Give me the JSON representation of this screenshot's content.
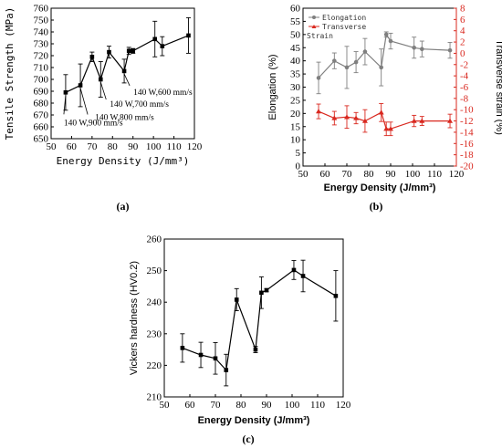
{
  "chart_data": [
    {
      "type": "line",
      "panel_label": "(a)",
      "ylabel": "Tensile Strength (MPa)",
      "xlabel": "Energy Density (J/mm³)",
      "xlim": [
        50,
        120
      ],
      "ylim": [
        650,
        760
      ],
      "x_ticks": [
        "50",
        "60",
        "70",
        "80",
        "90",
        "100",
        "110",
        "120"
      ],
      "y_ticks": [
        "650",
        "660",
        "670",
        "680",
        "690",
        "700",
        "710",
        "720",
        "730",
        "740",
        "750",
        "760"
      ],
      "series": [
        {
          "x": [
            57.1,
            64.3,
            70.0,
            74.2,
            78.3,
            85.7,
            88.0,
            90.0,
            100.7,
            104.3,
            117.1
          ],
          "y": [
            689,
            695,
            719,
            700,
            723,
            707,
            724,
            724,
            734,
            728,
            737
          ],
          "err": [
            15,
            18,
            4,
            15,
            5,
            10,
            3,
            2,
            15,
            8,
            15
          ]
        }
      ],
      "annotations": [
        {
          "text": "140 W,900 mm/s",
          "x": 57.1,
          "y": 689
        },
        {
          "text": "140 W,800 mm/s",
          "x": 64.3,
          "y": 695
        },
        {
          "text": "140 W,700 mm/s",
          "x": 74.2,
          "y": 700
        },
        {
          "text": "140 W,600 mm/s",
          "x": 85.7,
          "y": 707
        }
      ]
    },
    {
      "type": "line",
      "panel_label": "(b)",
      "xlabel": "Energy Density (J/mm³)",
      "ylabel": "Elongation (%)",
      "ylabel_right": "Transverse strain (%)",
      "xlim": [
        50,
        120
      ],
      "ylim": [
        0,
        60
      ],
      "ylim_right": [
        -20,
        8
      ],
      "x_ticks": [
        "50",
        "60",
        "70",
        "80",
        "90",
        "100",
        "110",
        "120"
      ],
      "y_ticks": [
        "0",
        "5",
        "10",
        "15",
        "20",
        "25",
        "30",
        "35",
        "40",
        "45",
        "50",
        "55",
        "60"
      ],
      "y_ticks_right": [
        "-20",
        "-18",
        "-16",
        "-14",
        "-12",
        "-10",
        "-8",
        "-6",
        "-4",
        "-2",
        "0",
        "2",
        "4",
        "6",
        "8"
      ],
      "legend": [
        "Elongation",
        "Transverse",
        "Strain"
      ],
      "colors": {
        "elongation": "#7f7f7f",
        "transverse": "#d9281f"
      },
      "series": [
        {
          "name": "Elongation",
          "x": [
            57.1,
            64.3,
            70.0,
            74.2,
            78.3,
            85.7,
            88.0,
            90.0,
            100.7,
            104.3,
            117.1
          ],
          "y": [
            33.5,
            40,
            37.5,
            39.5,
            43.5,
            37.5,
            50,
            47.5,
            45,
            44.5,
            44
          ],
          "err": [
            6,
            3,
            8,
            4,
            5,
            7,
            1,
            3,
            4,
            3,
            3
          ]
        },
        {
          "name": "Transverse Strain",
          "x": [
            57.1,
            64.3,
            70.0,
            74.2,
            78.3,
            85.7,
            88.0,
            90.0,
            100.7,
            104.3,
            117.1
          ],
          "y": [
            -10.3,
            -11.5,
            -11.3,
            -11.5,
            -12,
            -10.5,
            -13.4,
            -13.4,
            -12,
            -12,
            -12
          ],
          "err": [
            1.3,
            1.2,
            2,
            1,
            2,
            1.6,
            1.2,
            1.2,
            1,
            0.8,
            1.2
          ],
          "axis": "right"
        }
      ]
    },
    {
      "type": "line",
      "panel_label": "(c)",
      "ylabel": "Vickers hardness (HV0.2)",
      "xlabel": "Energy Density (J/mm³)",
      "xlim": [
        50,
        120
      ],
      "ylim": [
        210,
        260
      ],
      "x_ticks": [
        "50",
        "60",
        "70",
        "80",
        "90",
        "100",
        "110",
        "120"
      ],
      "y_ticks": [
        "210",
        "220",
        "230",
        "240",
        "250",
        "260"
      ],
      "series": [
        {
          "x": [
            57.1,
            64.3,
            70.0,
            74.2,
            78.3,
            85.7,
            88.0,
            90.0,
            100.7,
            104.3,
            117.1
          ],
          "y": [
            225.5,
            223.3,
            222.2,
            218.5,
            240.8,
            225,
            243,
            243.8,
            250.2,
            248.3,
            242
          ],
          "err": [
            4.5,
            4,
            5,
            5,
            3.5,
            1,
            5,
            0.5,
            3,
            5,
            8
          ]
        }
      ]
    }
  ]
}
